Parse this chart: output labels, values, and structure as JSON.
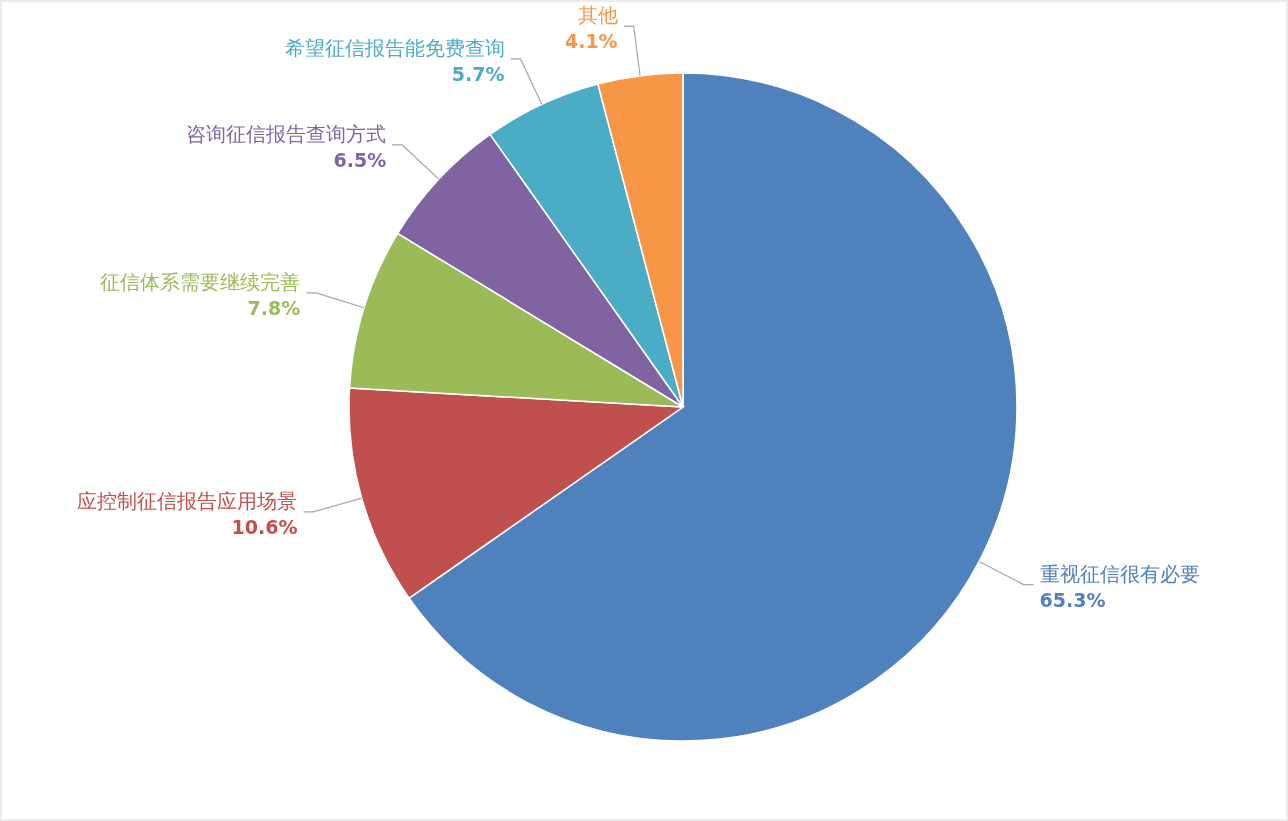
{
  "chart_data": {
    "type": "pie",
    "categories": [
      "重视征信很有必要",
      "应控制征信报告应用场景",
      "征信体系需要继续完善",
      "咨询征信报告查询方式",
      "希望征信报告能免费查询",
      "其他"
    ],
    "values": [
      65.3,
      10.6,
      7.8,
      6.5,
      5.7,
      4.1
    ],
    "value_labels": [
      "65.3%",
      "10.6%",
      "7.8%",
      "6.5%",
      "5.7%",
      "4.1%"
    ],
    "colors": [
      "#4f81bd",
      "#c0504d",
      "#9bbb59",
      "#8064a2",
      "#4bacc6",
      "#f79646"
    ]
  }
}
